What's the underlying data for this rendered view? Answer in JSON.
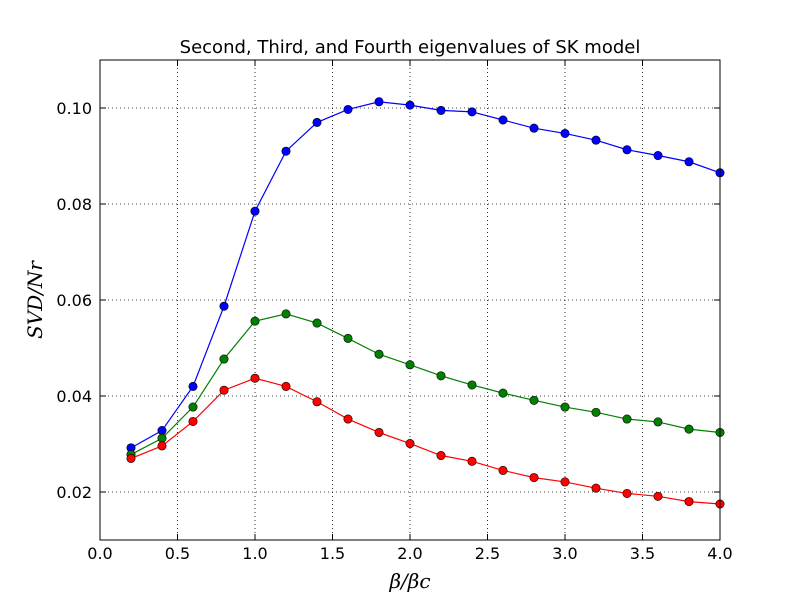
{
  "chart_data": {
    "type": "line",
    "title": "Second, Third, and Fourth eigenvalues of SK model",
    "xlabel": "β/βc",
    "ylabel": "SVD/Nr",
    "xlim": [
      0.0,
      4.0
    ],
    "ylim": [
      0.01,
      0.11
    ],
    "xticks": [
      0.0,
      0.5,
      1.0,
      1.5,
      2.0,
      2.5,
      3.0,
      3.5,
      4.0
    ],
    "xtick_labels": [
      "0.0",
      "0.5",
      "1.0",
      "1.5",
      "2.0",
      "2.5",
      "3.0",
      "3.5",
      "4.0"
    ],
    "yticks": [
      0.02,
      0.04,
      0.06,
      0.08,
      0.1
    ],
    "ytick_labels": [
      "0.02",
      "0.04",
      "0.06",
      "0.08",
      "0.10"
    ],
    "grid": true,
    "x": [
      0.2,
      0.4,
      0.6,
      0.8,
      1.0,
      1.2,
      1.4,
      1.6,
      1.8,
      2.0,
      2.2,
      2.4,
      2.6,
      2.8,
      3.0,
      3.2,
      3.4,
      3.6,
      3.8,
      4.0
    ],
    "series": [
      {
        "color": "#0000ff",
        "values": [
          0.0292,
          0.0328,
          0.042,
          0.0587,
          0.0785,
          0.091,
          0.097,
          0.0997,
          0.1013,
          0.1006,
          0.0995,
          0.0992,
          0.0975,
          0.0958,
          0.0947,
          0.0933,
          0.0913,
          0.0901,
          0.0888,
          0.0865
        ]
      },
      {
        "color": "#008000",
        "values": [
          0.0278,
          0.0312,
          0.0377,
          0.0477,
          0.0556,
          0.0571,
          0.0552,
          0.052,
          0.0487,
          0.0465,
          0.0442,
          0.0423,
          0.0406,
          0.0391,
          0.0377,
          0.0366,
          0.0352,
          0.0346,
          0.0331,
          0.0324
        ]
      },
      {
        "color": "#ff0000",
        "values": [
          0.027,
          0.0296,
          0.0347,
          0.0412,
          0.0437,
          0.042,
          0.0388,
          0.0352,
          0.0324,
          0.0301,
          0.0276,
          0.0264,
          0.0245,
          0.023,
          0.0221,
          0.0208,
          0.0197,
          0.0191,
          0.018,
          0.0175
        ]
      }
    ]
  }
}
